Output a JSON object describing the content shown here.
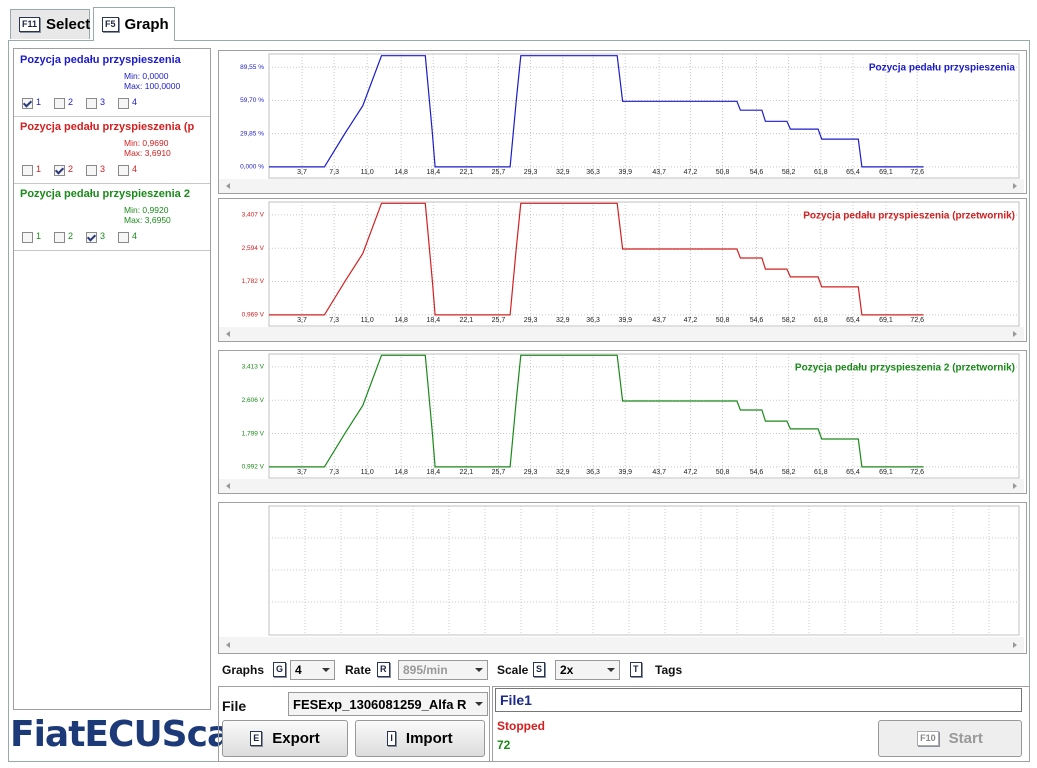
{
  "tabs": [
    {
      "key": "F11",
      "label": "Select"
    },
    {
      "key": "F5",
      "label": "Graph"
    }
  ],
  "sidebar": {
    "items": [
      {
        "title": "Pozycja pedału przyspieszenia",
        "min": "Min: 0,0000",
        "max": "Max: 100,0000",
        "color": "#1c1cc8",
        "checks": [
          "1",
          "2",
          "3",
          "4"
        ],
        "checked": [
          true,
          false,
          false,
          false
        ]
      },
      {
        "title": "Pozycja pedału przyspieszenia (p",
        "min": "Min: 0,9690",
        "max": "Max: 3,6910",
        "color": "#d42020",
        "checks": [
          "1",
          "2",
          "3",
          "4"
        ],
        "checked": [
          false,
          true,
          false,
          false
        ]
      },
      {
        "title": "Pozycja pedału przyspieszenia 2",
        "min": "Min: 0,9920",
        "max": "Max: 3,6950",
        "color": "#1a8a1a",
        "checks": [
          "1",
          "2",
          "3",
          "4"
        ],
        "checked": [
          false,
          false,
          true,
          false
        ]
      }
    ]
  },
  "logo": "FiatECUScan",
  "chart_data": [
    {
      "type": "line",
      "grid": true,
      "x": [
        0,
        6.2,
        8.5,
        10.5,
        12.6,
        17.5,
        18.3,
        18.6,
        27.0,
        27.7,
        28.2,
        39.0,
        39.6,
        52.4,
        52.8,
        55.2,
        55.6,
        58.0,
        58.4,
        61.5,
        61.9,
        66.0,
        66.4,
        73.3
      ],
      "xlim": [
        0,
        84
      ],
      "xticks": [
        {
          "value": 3.7,
          "label": "3,7"
        },
        {
          "value": 7.3,
          "label": "7,3"
        },
        {
          "value": 11.0,
          "label": "11,0"
        },
        {
          "value": 14.8,
          "label": "14,8"
        },
        {
          "value": 18.4,
          "label": "18,4"
        },
        {
          "value": 22.1,
          "label": "22,1"
        },
        {
          "value": 25.7,
          "label": "25,7"
        },
        {
          "value": 29.3,
          "label": "29,3"
        },
        {
          "value": 32.9,
          "label": "32,9"
        },
        {
          "value": 36.3,
          "label": "36,3"
        },
        {
          "value": 39.9,
          "label": "39,9"
        },
        {
          "value": 43.7,
          "label": "43,7"
        },
        {
          "value": 47.2,
          "label": "47,2"
        },
        {
          "value": 50.8,
          "label": "50,8"
        },
        {
          "value": 54.6,
          "label": "54,6"
        },
        {
          "value": 58.2,
          "label": "58,2"
        },
        {
          "value": 61.8,
          "label": "61,8"
        },
        {
          "value": 65.4,
          "label": "65,4"
        },
        {
          "value": 69.1,
          "label": "69,1"
        },
        {
          "value": 72.6,
          "label": "72,6"
        }
      ],
      "ylim": [
        -10,
        101.5
      ],
      "yticks": [
        {
          "value": 0,
          "label": "0,000 %"
        },
        {
          "value": 29.85,
          "label": "29,85 %"
        },
        {
          "value": 59.7,
          "label": "59,70 %"
        },
        {
          "value": 89.55,
          "label": "89,55 %"
        }
      ],
      "series": [
        {
          "name": "Pozycja pedału przyspieszenia",
          "color": "#1c1cc8",
          "values": [
            0,
            0,
            30,
            55,
            100,
            100,
            30,
            0,
            0,
            60,
            100,
            100,
            59,
            59,
            51,
            51,
            41,
            41,
            34,
            34,
            25,
            25,
            0,
            0
          ]
        }
      ]
    },
    {
      "type": "line",
      "grid": true,
      "x": [
        0,
        6.2,
        8.5,
        10.5,
        12.6,
        17.5,
        18.3,
        18.6,
        27.0,
        27.7,
        28.2,
        39.0,
        39.6,
        52.4,
        52.8,
        55.2,
        55.6,
        58.0,
        58.4,
        61.5,
        61.9,
        66.0,
        66.4,
        73.3
      ],
      "xlim": [
        0,
        84
      ],
      "xticks": [
        {
          "value": 3.7,
          "label": "3,7"
        },
        {
          "value": 7.3,
          "label": "7,3"
        },
        {
          "value": 11.0,
          "label": "11,0"
        },
        {
          "value": 14.8,
          "label": "14,8"
        },
        {
          "value": 18.4,
          "label": "18,4"
        },
        {
          "value": 22.1,
          "label": "22,1"
        },
        {
          "value": 25.7,
          "label": "25,7"
        },
        {
          "value": 29.3,
          "label": "29,3"
        },
        {
          "value": 32.9,
          "label": "32,9"
        },
        {
          "value": 36.3,
          "label": "36,3"
        },
        {
          "value": 39.9,
          "label": "39,9"
        },
        {
          "value": 43.7,
          "label": "43,7"
        },
        {
          "value": 47.2,
          "label": "47,2"
        },
        {
          "value": 50.8,
          "label": "50,8"
        },
        {
          "value": 54.6,
          "label": "54,6"
        },
        {
          "value": 58.2,
          "label": "58,2"
        },
        {
          "value": 61.8,
          "label": "61,8"
        },
        {
          "value": 65.4,
          "label": "65,4"
        },
        {
          "value": 69.1,
          "label": "69,1"
        },
        {
          "value": 72.6,
          "label": "72,6"
        }
      ],
      "ylim": [
        0.697,
        3.722
      ],
      "yticks": [
        {
          "value": 0.969,
          "label": "0,969 V"
        },
        {
          "value": 1.782,
          "label": "1,782 V"
        },
        {
          "value": 2.594,
          "label": "2,594 V"
        },
        {
          "value": 3.407,
          "label": "3,407 V"
        }
      ],
      "series": [
        {
          "name": "Pozycja pedału przyspieszenia (przetwornik)",
          "color": "#d42020",
          "values": [
            0.969,
            0.969,
            1.786,
            2.466,
            3.691,
            3.691,
            1.786,
            0.969,
            0.969,
            2.602,
            3.691,
            3.691,
            2.575,
            2.575,
            2.357,
            2.357,
            2.085,
            2.085,
            1.894,
            1.894,
            1.65,
            1.65,
            0.969,
            0.969
          ]
        }
      ]
    },
    {
      "type": "line",
      "grid": true,
      "x": [
        0,
        6.2,
        8.5,
        10.5,
        12.6,
        17.5,
        18.3,
        18.6,
        27.0,
        27.7,
        28.2,
        39.0,
        39.6,
        52.4,
        52.8,
        55.2,
        55.6,
        58.0,
        58.4,
        61.5,
        61.9,
        66.0,
        66.4,
        73.3
      ],
      "xlim": [
        0,
        84
      ],
      "xticks": [
        {
          "value": 3.7,
          "label": "3,7"
        },
        {
          "value": 7.3,
          "label": "7,3"
        },
        {
          "value": 11.0,
          "label": "11,0"
        },
        {
          "value": 14.8,
          "label": "14,8"
        },
        {
          "value": 18.4,
          "label": "18,4"
        },
        {
          "value": 22.1,
          "label": "22,1"
        },
        {
          "value": 25.7,
          "label": "25,7"
        },
        {
          "value": 29.3,
          "label": "29,3"
        },
        {
          "value": 32.9,
          "label": "32,9"
        },
        {
          "value": 36.3,
          "label": "36,3"
        },
        {
          "value": 39.9,
          "label": "39,9"
        },
        {
          "value": 43.7,
          "label": "43,7"
        },
        {
          "value": 47.2,
          "label": "47,2"
        },
        {
          "value": 50.8,
          "label": "50,8"
        },
        {
          "value": 54.6,
          "label": "54,6"
        },
        {
          "value": 58.2,
          "label": "58,2"
        },
        {
          "value": 61.8,
          "label": "61,8"
        },
        {
          "value": 65.4,
          "label": "65,4"
        },
        {
          "value": 69.1,
          "label": "69,1"
        },
        {
          "value": 72.6,
          "label": "72,6"
        }
      ],
      "ylim": [
        0.722,
        3.726
      ],
      "yticks": [
        {
          "value": 0.992,
          "label": "0,992 V"
        },
        {
          "value": 1.799,
          "label": "1,799 V"
        },
        {
          "value": 2.606,
          "label": "2,606 V"
        },
        {
          "value": 3.413,
          "label": "3,413 V"
        }
      ],
      "series": [
        {
          "name": "Pozycja pedału przyspieszenia 2 (przetwornik)",
          "color": "#1a8a1a",
          "values": [
            0.992,
            0.992,
            1.803,
            2.479,
            3.695,
            3.695,
            1.803,
            0.992,
            0.992,
            2.614,
            3.695,
            3.695,
            2.587,
            2.587,
            2.37,
            2.37,
            2.1,
            2.1,
            1.911,
            1.911,
            1.668,
            1.668,
            0.992,
            0.992
          ]
        }
      ]
    }
  ],
  "controls": {
    "graphs": {
      "label": "Graphs",
      "key": "G",
      "value": "4"
    },
    "rate": {
      "label": "Rate",
      "key": "R",
      "value": "895/min"
    },
    "scale": {
      "label": "Scale",
      "key": "S",
      "value": "2x"
    },
    "tags": {
      "key": "T",
      "label": "Tags"
    }
  },
  "file": {
    "label": "File",
    "value": "FESExp_1306081259_Alfa R",
    "export": {
      "key": "E",
      "label": "Export"
    },
    "import": {
      "key": "I",
      "label": "Import"
    }
  },
  "status": {
    "name": "File1",
    "state": "Stopped",
    "count": "72",
    "start": {
      "key": "F10",
      "label": "Start"
    }
  }
}
